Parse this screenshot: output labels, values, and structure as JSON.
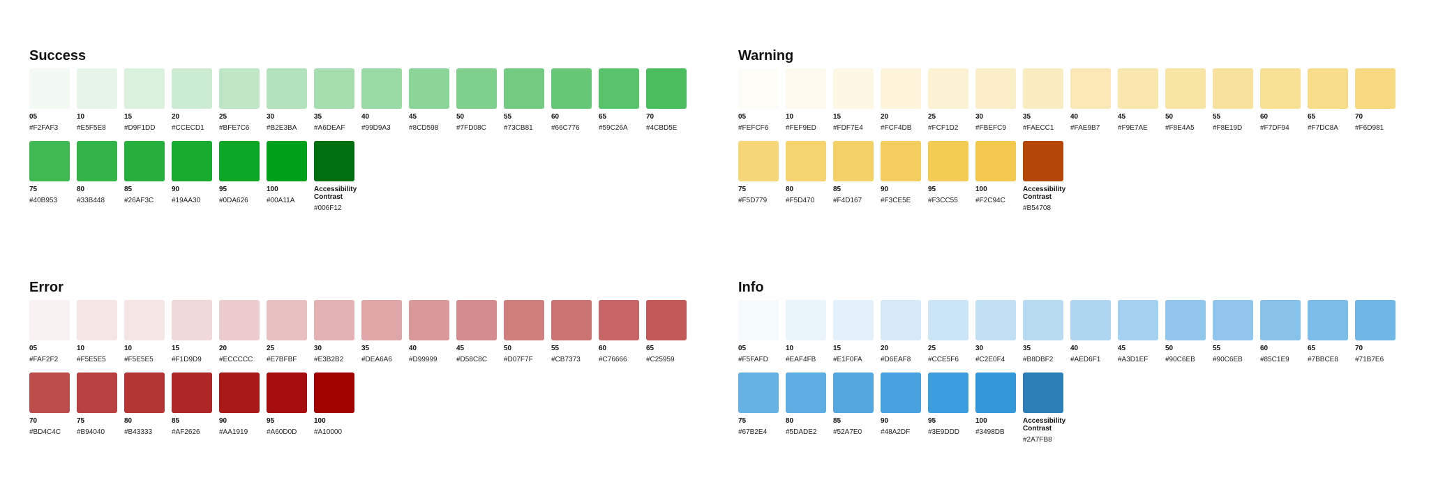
{
  "palettes": [
    {
      "key": "success",
      "title": "Success",
      "swatches": [
        {
          "step": "05",
          "hex": "#F2FAF3"
        },
        {
          "step": "10",
          "hex": "#E5F5E8"
        },
        {
          "step": "15",
          "hex": "#D9F1DD"
        },
        {
          "step": "20",
          "hex": "#CCECD1"
        },
        {
          "step": "25",
          "hex": "#BFE7C6"
        },
        {
          "step": "30",
          "hex": "#B2E3BA"
        },
        {
          "step": "35",
          "hex": "#A6DEAF"
        },
        {
          "step": "40",
          "hex": "#99D9A3"
        },
        {
          "step": "45",
          "hex": "#8CD598"
        },
        {
          "step": "50",
          "hex": "#7FD08C"
        },
        {
          "step": "55",
          "hex": "#73CB81"
        },
        {
          "step": "60",
          "hex": "#66C776"
        },
        {
          "step": "65",
          "hex": "#59C26A"
        },
        {
          "step": "70",
          "hex": "#4CBD5E"
        },
        {
          "step": "75",
          "hex": "#40B953"
        },
        {
          "step": "80",
          "hex": "#33B448"
        },
        {
          "step": "85",
          "hex": "#26AF3C"
        },
        {
          "step": "90",
          "hex": "#19AA30"
        },
        {
          "step": "95",
          "hex": "#0DA626"
        },
        {
          "step": "100",
          "hex": "#00A11A"
        },
        {
          "step": "Accessibility Contrast",
          "hex": "#006F12"
        }
      ]
    },
    {
      "key": "warning",
      "title": "Warning",
      "swatches": [
        {
          "step": "05",
          "hex": "#FEFCF6"
        },
        {
          "step": "10",
          "hex": "#FEF9ED"
        },
        {
          "step": "15",
          "hex": "#FDF7E4"
        },
        {
          "step": "20",
          "hex": "#FCF4DB"
        },
        {
          "step": "25",
          "hex": "#FCF1D2"
        },
        {
          "step": "30",
          "hex": "#FBEFC9"
        },
        {
          "step": "35",
          "hex": "#FAECC1"
        },
        {
          "step": "40",
          "hex": "#FAE9B7"
        },
        {
          "step": "45",
          "hex": "#F9E7AE"
        },
        {
          "step": "50",
          "hex": "#F8E4A5"
        },
        {
          "step": "55",
          "hex": "#F8E19D"
        },
        {
          "step": "60",
          "hex": "#F7DF94"
        },
        {
          "step": "65",
          "hex": "#F7DC8A"
        },
        {
          "step": "70",
          "hex": "#F6D981"
        },
        {
          "step": "75",
          "hex": "#F5D779"
        },
        {
          "step": "80",
          "hex": "#F5D470"
        },
        {
          "step": "85",
          "hex": "#F4D167"
        },
        {
          "step": "90",
          "hex": "#F3CE5E"
        },
        {
          "step": "95",
          "hex": "#F3CC55"
        },
        {
          "step": "100",
          "hex": "#F2C94C"
        },
        {
          "step": "Accessibility Contrast",
          "hex": "#B54708"
        }
      ]
    },
    {
      "key": "error",
      "title": "Error",
      "swatches": [
        {
          "step": "05",
          "hex": "#FAF2F2"
        },
        {
          "step": "10",
          "hex": "#F5E5E5"
        },
        {
          "step": "10",
          "hex": "#F5E5E5"
        },
        {
          "step": "15",
          "hex": "#F1D9D9"
        },
        {
          "step": "20",
          "hex": "#ECCCCC"
        },
        {
          "step": "25",
          "hex": "#E7BFBF"
        },
        {
          "step": "30",
          "hex": "#E3B2B2"
        },
        {
          "step": "35",
          "hex": "#DEA6A6"
        },
        {
          "step": "40",
          "hex": "#D99999"
        },
        {
          "step": "45",
          "hex": "#D58C8C"
        },
        {
          "step": "50",
          "hex": "#D07F7F"
        },
        {
          "step": "55",
          "hex": "#CB7373"
        },
        {
          "step": "60",
          "hex": "#C76666"
        },
        {
          "step": "65",
          "hex": "#C25959"
        },
        {
          "step": "70",
          "hex": "#BD4C4C"
        },
        {
          "step": "75",
          "hex": "#B94040"
        },
        {
          "step": "80",
          "hex": "#B43333"
        },
        {
          "step": "85",
          "hex": "#AF2626"
        },
        {
          "step": "90",
          "hex": "#AA1919"
        },
        {
          "step": "95",
          "hex": "#A60D0D"
        },
        {
          "step": "100",
          "hex": "#A10000"
        }
      ]
    },
    {
      "key": "info",
      "title": "Info",
      "swatches": [
        {
          "step": "05",
          "hex": "#F5FAFD"
        },
        {
          "step": "10",
          "hex": "#EAF4FB"
        },
        {
          "step": "15",
          "hex": "#E1F0FA"
        },
        {
          "step": "20",
          "hex": "#D6EAF8"
        },
        {
          "step": "25",
          "hex": "#CCE5F6"
        },
        {
          "step": "30",
          "hex": "#C2E0F4"
        },
        {
          "step": "35",
          "hex": "#B8DBF2"
        },
        {
          "step": "40",
          "hex": "#AED6F1"
        },
        {
          "step": "45",
          "hex": "#A3D1EF"
        },
        {
          "step": "50",
          "hex": "#90C6EB"
        },
        {
          "step": "55",
          "hex": "#90C6EB"
        },
        {
          "step": "60",
          "hex": "#85C1E9"
        },
        {
          "step": "65",
          "hex": "#7BBCE8"
        },
        {
          "step": "70",
          "hex": "#71B7E6"
        },
        {
          "step": "75",
          "hex": "#67B2E4"
        },
        {
          "step": "80",
          "hex": "#5DADE2"
        },
        {
          "step": "85",
          "hex": "#52A7E0"
        },
        {
          "step": "90",
          "hex": "#48A2DF"
        },
        {
          "step": "95",
          "hex": "#3E9DDD"
        },
        {
          "step": "100",
          "hex": "#3498DB"
        },
        {
          "step": "Accessibility Contrast",
          "hex": "#2A7FB8"
        }
      ]
    }
  ]
}
